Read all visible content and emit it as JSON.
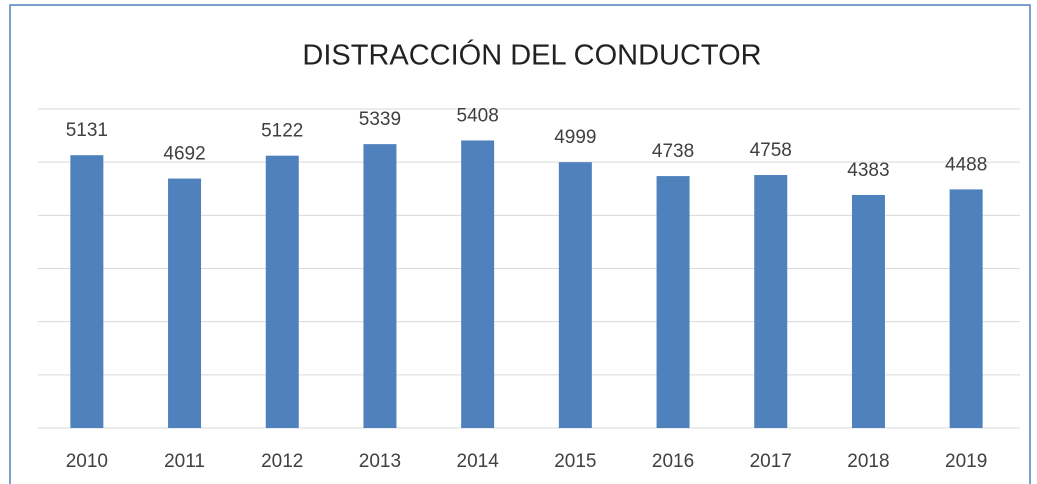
{
  "chart_data": {
    "type": "bar",
    "title": "DISTRACCIÓN DEL CONDUCTOR",
    "categories": [
      "2010",
      "2011",
      "2012",
      "2013",
      "2014",
      "2015",
      "2016",
      "2017",
      "2018",
      "2019"
    ],
    "values": [
      5131,
      4692,
      5122,
      5339,
      5408,
      4999,
      4738,
      4758,
      4383,
      4488
    ],
    "color": "#4f81bd",
    "ylim": [
      0,
      6000
    ],
    "yticks": [
      0,
      1000,
      2000,
      3000,
      4000,
      5000,
      6000
    ],
    "grid": true
  }
}
